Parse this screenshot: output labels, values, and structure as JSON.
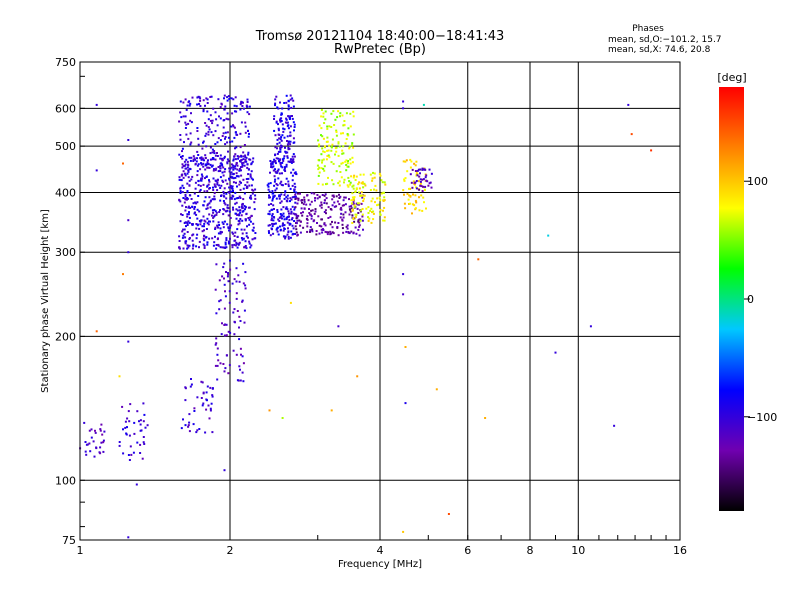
{
  "chart_data": {
    "type": "scatter",
    "title": "Tromsø 20121104 18:40:00−18:41:43",
    "subtitle": "RwPretec (Bp)",
    "xlabel": "Frequency [MHz]",
    "ylabel": "Stationary phase Virtual Height [km]",
    "x_scale": "log2",
    "y_scale": "log",
    "xlim": [
      1,
      16
    ],
    "ylim": [
      75,
      750
    ],
    "x_ticks": [
      1,
      2,
      4,
      6,
      8,
      10,
      16
    ],
    "x_tick_labels": [
      "1",
      "2",
      "4",
      "6",
      "8",
      "10",
      "16"
    ],
    "y_ticks": [
      75,
      100,
      200,
      300,
      400,
      500,
      600,
      750
    ],
    "y_tick_labels": [
      "75",
      "100",
      "200",
      "300",
      "400",
      "500",
      "600",
      "750"
    ],
    "grid": true,
    "phase_stats": {
      "heading": "Phases",
      "line1": "mean, sd,O:−101.2, 15.7",
      "line2": "mean, sd,X:  74.6, 20.8"
    },
    "colorbar": {
      "label": "[deg]",
      "range": [
        -180,
        180
      ],
      "ticks": [
        100,
        0,
        -100
      ],
      "tick_labels": [
        "100",
        "0",
        "−100"
      ],
      "colors": [
        "#000000",
        "#7000b0",
        "#0000ff",
        "#00c8ff",
        "#00ff00",
        "#ffff00",
        "#ff8000",
        "#ff0000"
      ]
    },
    "clusters": [
      {
        "name": "",
        "phase": -110,
        "n": 30,
        "f": [
          1.0,
          1.12
        ],
        "h": [
          110,
          135
        ]
      },
      {
        "name": "",
        "phase": -105,
        "n": 40,
        "f": [
          1.2,
          1.38
        ],
        "h": [
          110,
          145
        ]
      },
      {
        "name": "",
        "phase": -105,
        "n": 45,
        "f": [
          1.6,
          1.85
        ],
        "h": [
          125,
          165
        ]
      },
      {
        "name": "",
        "phase": -110,
        "n": 90,
        "f": [
          1.87,
          2.15
        ],
        "h": [
          160,
          290
        ]
      },
      {
        "name": "",
        "phase": -100,
        "n": 600,
        "f": [
          1.58,
          2.25
        ],
        "h": [
          305,
          480
        ]
      },
      {
        "name": "",
        "phase": -100,
        "n": 220,
        "f": [
          1.58,
          2.2
        ],
        "h": [
          440,
          640
        ]
      },
      {
        "name": "",
        "phase": -95,
        "n": 220,
        "f": [
          2.38,
          2.72
        ],
        "h": [
          320,
          470
        ]
      },
      {
        "name": "",
        "phase": -95,
        "n": 130,
        "f": [
          2.45,
          2.7
        ],
        "h": [
          460,
          640
        ]
      },
      {
        "name": "",
        "phase": -130,
        "n": 220,
        "f": [
          2.7,
          3.7
        ],
        "h": [
          325,
          400
        ]
      },
      {
        "name": "",
        "phase": 65,
        "n": 140,
        "f": [
          3.0,
          3.55
        ],
        "h": [
          410,
          600
        ]
      },
      {
        "name": "",
        "phase": 80,
        "n": 110,
        "f": [
          3.5,
          4.1
        ],
        "h": [
          345,
          440
        ]
      },
      {
        "name": "",
        "phase": 95,
        "n": 60,
        "f": [
          4.45,
          4.95
        ],
        "h": [
          360,
          470
        ]
      },
      {
        "name": "",
        "phase": -120,
        "n": 40,
        "f": [
          4.6,
          5.1
        ],
        "h": [
          400,
          450
        ]
      }
    ],
    "scatter_points": [
      {
        "x": 1.08,
        "y": 610,
        "phase": -100
      },
      {
        "x": 1.25,
        "y": 515,
        "phase": -100
      },
      {
        "x": 1.22,
        "y": 460,
        "phase": 140
      },
      {
        "x": 1.08,
        "y": 445,
        "phase": -100
      },
      {
        "x": 1.25,
        "y": 350,
        "phase": -110
      },
      {
        "x": 1.25,
        "y": 300,
        "phase": -100
      },
      {
        "x": 1.22,
        "y": 270,
        "phase": 130
      },
      {
        "x": 1.08,
        "y": 205,
        "phase": 140
      },
      {
        "x": 1.25,
        "y": 195,
        "phase": -100
      },
      {
        "x": 1.2,
        "y": 165,
        "phase": 90
      },
      {
        "x": 1.3,
        "y": 98,
        "phase": -100
      },
      {
        "x": 1.25,
        "y": 76,
        "phase": -100
      },
      {
        "x": 1.95,
        "y": 105,
        "phase": -100
      },
      {
        "x": 2.4,
        "y": 140,
        "phase": 120
      },
      {
        "x": 2.55,
        "y": 135,
        "phase": 60
      },
      {
        "x": 2.65,
        "y": 235,
        "phase": 90
      },
      {
        "x": 3.3,
        "y": 210,
        "phase": -110
      },
      {
        "x": 3.2,
        "y": 140,
        "phase": 110
      },
      {
        "x": 3.6,
        "y": 165,
        "phase": 120
      },
      {
        "x": 4.45,
        "y": 620,
        "phase": -100
      },
      {
        "x": 4.45,
        "y": 600,
        "phase": -100
      },
      {
        "x": 4.9,
        "y": 610,
        "phase": -10
      },
      {
        "x": 4.45,
        "y": 270,
        "phase": -100
      },
      {
        "x": 4.45,
        "y": 245,
        "phase": -110
      },
      {
        "x": 4.5,
        "y": 190,
        "phase": 110
      },
      {
        "x": 4.5,
        "y": 145,
        "phase": -90
      },
      {
        "x": 4.45,
        "y": 78,
        "phase": 100
      },
      {
        "x": 5.2,
        "y": 155,
        "phase": 110
      },
      {
        "x": 5.5,
        "y": 85,
        "phase": 150
      },
      {
        "x": 6.3,
        "y": 290,
        "phase": 140
      },
      {
        "x": 6.5,
        "y": 135,
        "phase": 110
      },
      {
        "x": 8.7,
        "y": 325,
        "phase": -20
      },
      {
        "x": 9.0,
        "y": 185,
        "phase": -100
      },
      {
        "x": 10.6,
        "y": 210,
        "phase": -100
      },
      {
        "x": 11.8,
        "y": 130,
        "phase": -100
      },
      {
        "x": 12.6,
        "y": 610,
        "phase": -100
      },
      {
        "x": 12.8,
        "y": 530,
        "phase": 150
      },
      {
        "x": 14.0,
        "y": 490,
        "phase": 160
      }
    ]
  }
}
